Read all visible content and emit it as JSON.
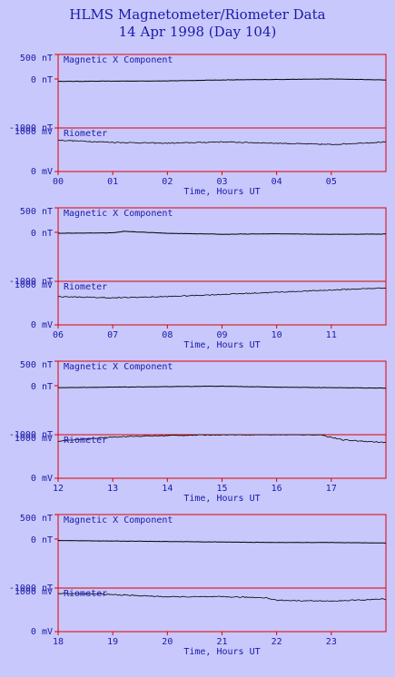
{
  "header": {
    "title": "HLMS Magnetometer/Riometer Data",
    "subtitle": "14 Apr 1998 (Day 104)"
  },
  "colors": {
    "background": "#c8c8fc",
    "frame": "#e00000",
    "text": "#1a1aa8",
    "trace": "#000000"
  },
  "chart_data": [
    {
      "type": "line",
      "panel_index": 0,
      "xlabel": "Time, Hours UT",
      "xlim": [
        0,
        6
      ],
      "xticks": [
        "00",
        "01",
        "02",
        "03",
        "04",
        "05"
      ],
      "plots": [
        {
          "label": "Magnetic X Component",
          "ylim": [
            -1000,
            500
          ],
          "yticks": [
            {
              "v": 500,
              "t": "500 nT"
            },
            {
              "v": 0,
              "t": "0 nT"
            },
            {
              "v": -1000,
              "t": "-1000 nT"
            }
          ],
          "x": [
            0,
            1,
            2,
            3,
            4,
            5,
            6
          ],
          "y": [
            -50,
            -45,
            -40,
            -20,
            -10,
            0,
            -20
          ]
        },
        {
          "label": "Riometer",
          "ylim": [
            0,
            1000
          ],
          "yticks": [
            {
              "v": 1000,
              "t": "1000 mV"
            },
            {
              "v": 0,
              "t": "0 mV"
            }
          ],
          "x": [
            0,
            1,
            2,
            3,
            4,
            5,
            6
          ],
          "y": [
            720,
            670,
            650,
            680,
            650,
            620,
            680
          ]
        }
      ]
    },
    {
      "type": "line",
      "panel_index": 1,
      "xlabel": "Time, Hours UT",
      "xlim": [
        6,
        12
      ],
      "xticks": [
        "06",
        "07",
        "08",
        "09",
        "10",
        "11"
      ],
      "plots": [
        {
          "label": "Magnetic X Component",
          "ylim": [
            -1000,
            500
          ],
          "yticks": [
            {
              "v": 500,
              "t": "500 nT"
            },
            {
              "v": 0,
              "t": "0 nT"
            },
            {
              "v": -1000,
              "t": "-1000 nT"
            }
          ],
          "x": [
            6,
            7,
            7.2,
            8,
            9,
            10,
            11,
            12
          ],
          "y": [
            -20,
            -10,
            20,
            -20,
            -40,
            -30,
            -40,
            -35
          ]
        },
        {
          "label": "Riometer",
          "ylim": [
            0,
            1000
          ],
          "yticks": [
            {
              "v": 1000,
              "t": "1000 mV"
            },
            {
              "v": 0,
              "t": "0 mV"
            }
          ],
          "x": [
            6,
            7,
            8,
            9,
            10,
            11,
            12
          ],
          "y": [
            650,
            620,
            650,
            700,
            750,
            800,
            850
          ]
        }
      ]
    },
    {
      "type": "line",
      "panel_index": 2,
      "xlabel": "Time, Hours UT",
      "xlim": [
        12,
        18
      ],
      "xticks": [
        "12",
        "13",
        "14",
        "15",
        "16",
        "17"
      ],
      "plots": [
        {
          "label": "Magnetic X Component",
          "ylim": [
            -1000,
            500
          ],
          "yticks": [
            {
              "v": 500,
              "t": "500 nT"
            },
            {
              "v": 0,
              "t": "0 nT"
            },
            {
              "v": -1000,
              "t": "-1000 nT"
            }
          ],
          "x": [
            12,
            13,
            14,
            15,
            16,
            17,
            18
          ],
          "y": [
            -40,
            -30,
            -20,
            -10,
            -30,
            -40,
            -50
          ]
        },
        {
          "label": "Riometer",
          "ylim": [
            0,
            1000
          ],
          "yticks": [
            {
              "v": 1000,
              "t": "1000 mV"
            },
            {
              "v": 0,
              "t": "0 mV"
            }
          ],
          "x": [
            12,
            13,
            14,
            15,
            16,
            16.8,
            17.2,
            18
          ],
          "y": [
            850,
            950,
            980,
            1000,
            1000,
            1000,
            880,
            820
          ]
        }
      ]
    },
    {
      "type": "line",
      "panel_index": 3,
      "xlabel": "Time, Hours UT",
      "xlim": [
        18,
        24
      ],
      "xticks": [
        "18",
        "19",
        "20",
        "21",
        "22",
        "23"
      ],
      "plots": [
        {
          "label": "Magnetic X Component",
          "ylim": [
            -1000,
            500
          ],
          "yticks": [
            {
              "v": 500,
              "t": "500 nT"
            },
            {
              "v": 0,
              "t": "0 nT"
            },
            {
              "v": -1000,
              "t": "-1000 nT"
            }
          ],
          "x": [
            18,
            19,
            20,
            21,
            22,
            23,
            24
          ],
          "y": [
            -30,
            -40,
            -50,
            -60,
            -70,
            -70,
            -80
          ]
        },
        {
          "label": "Riometer",
          "ylim": [
            0,
            1000
          ],
          "yticks": [
            {
              "v": 1000,
              "t": "1000 mV"
            },
            {
              "v": 0,
              "t": "0 mV"
            }
          ],
          "x": [
            18,
            19,
            20,
            21,
            21.8,
            22,
            23,
            24
          ],
          "y": [
            880,
            850,
            800,
            800,
            780,
            720,
            700,
            750
          ]
        }
      ]
    }
  ]
}
